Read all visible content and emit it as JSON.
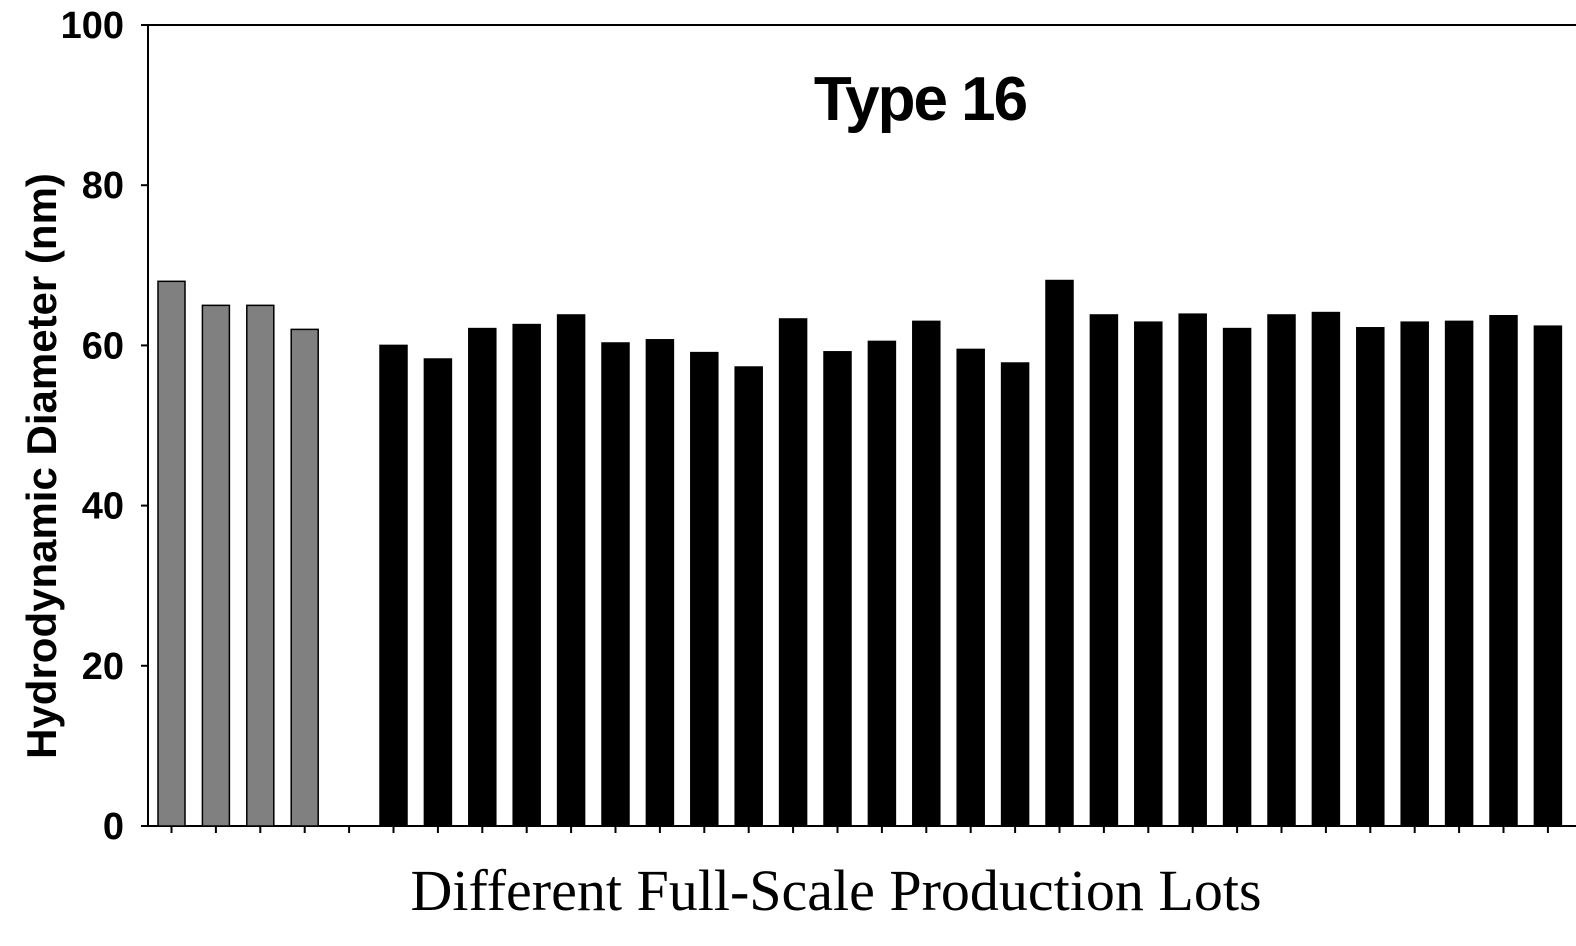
{
  "chart_data": {
    "type": "bar",
    "title": "Type 16",
    "xlabel": "Different Full-Scale Production Lots",
    "ylabel": "Hydrodynamic Diameter (nm)",
    "ylim": [
      0,
      100
    ],
    "yticks": [
      0,
      20,
      40,
      60,
      80,
      100
    ],
    "grid": false,
    "legend": "none",
    "colors": {
      "gray": "#808080",
      "black": "#000000"
    },
    "series": [
      {
        "values": [
          68.0,
          65.0,
          65.0,
          62.0
        ],
        "color": "#808080",
        "start_slot": 0
      },
      {
        "values": [
          60.0,
          58.3,
          62.1,
          62.6,
          63.8,
          60.3,
          60.7,
          59.1,
          57.3,
          63.3,
          59.2,
          60.5,
          63.0,
          59.5,
          57.8,
          68.1,
          63.8,
          62.9,
          63.9,
          62.1,
          63.8,
          64.1,
          62.2,
          62.9,
          63.0,
          63.7,
          62.4
        ],
        "color": "#000000",
        "start_slot": 5
      }
    ]
  }
}
